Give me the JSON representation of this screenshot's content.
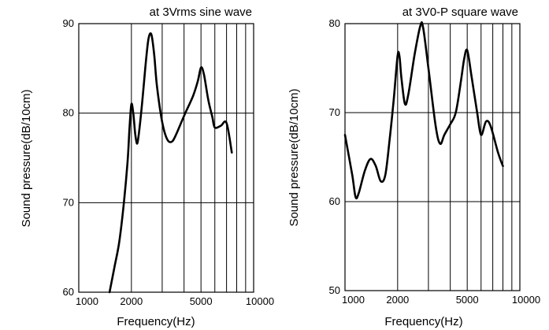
{
  "chart_data": [
    {
      "type": "line",
      "title": "at 3Vrms sine wave",
      "xlabel": "Frequency(Hz)",
      "ylabel": "Sound pressure(dB/10cm)",
      "x_scale": "log",
      "xlim": [
        1000,
        10000
      ],
      "ylim": [
        60,
        90
      ],
      "x_ticks": [
        1000,
        2000,
        5000,
        10000
      ],
      "x_tick_labels": [
        "1000",
        "2000",
        "5000",
        "10000"
      ],
      "y_ticks": [
        60,
        70,
        80,
        90
      ],
      "y_tick_labels": [
        "60",
        "70",
        "80",
        "90"
      ],
      "grid": true,
      "series": [
        {
          "x": [
            1500,
            1600,
            1700,
            1800,
            1900,
            1950,
            2000,
            2050,
            2100,
            2150,
            2200,
            2300,
            2400,
            2500,
            2600,
            2700,
            2800,
            3000,
            3200,
            3400,
            3600,
            4000,
            4500,
            4800,
            5000,
            5200,
            5500,
            5800,
            6000,
            6500,
            7000,
            7500
          ],
          "y": [
            60,
            62.8,
            65.5,
            69.5,
            74.5,
            78.3,
            81,
            80,
            77.8,
            76.6,
            77.5,
            81,
            85,
            88.2,
            88.8,
            86.5,
            83,
            79,
            77.1,
            76.8,
            77.6,
            79.7,
            81.9,
            83.6,
            85.1,
            84.3,
            81.5,
            79.6,
            78.4,
            78.6,
            78.9,
            75.6
          ]
        }
      ]
    },
    {
      "type": "line",
      "title": "at 3V0-P square wave",
      "xlabel": "Frequency(Hz)",
      "ylabel": "Sound pressure(dB/10cm)",
      "x_scale": "log",
      "xlim": [
        1000,
        10000
      ],
      "ylim": [
        50,
        80
      ],
      "x_ticks": [
        1000,
        2000,
        5000,
        10000
      ],
      "x_tick_labels": [
        "1000",
        "2000",
        "5000",
        "10000"
      ],
      "y_ticks": [
        50,
        60,
        70,
        80
      ],
      "y_tick_labels": [
        "50",
        "60",
        "70",
        "80"
      ],
      "grid": true,
      "series": [
        {
          "x": [
            1000,
            1100,
            1150,
            1200,
            1300,
            1400,
            1500,
            1600,
            1700,
            1800,
            1900,
            2000,
            2050,
            2100,
            2200,
            2300,
            2500,
            2700,
            2800,
            3000,
            3300,
            3500,
            3700,
            4000,
            4300,
            4600,
            4800,
            5000,
            5300,
            5700,
            6000,
            6400,
            6800,
            7500,
            8000
          ],
          "y": [
            67.5,
            63,
            60.5,
            61,
            63.5,
            64.8,
            64,
            62.3,
            63,
            67,
            71.5,
            76.4,
            76.3,
            74,
            71,
            72,
            76.5,
            79.8,
            79.5,
            75,
            68.5,
            66.5,
            67.5,
            68.7,
            70,
            73.5,
            76,
            77,
            74,
            70,
            67.5,
            69,
            68.5,
            65.5,
            64
          ]
        }
      ]
    }
  ]
}
